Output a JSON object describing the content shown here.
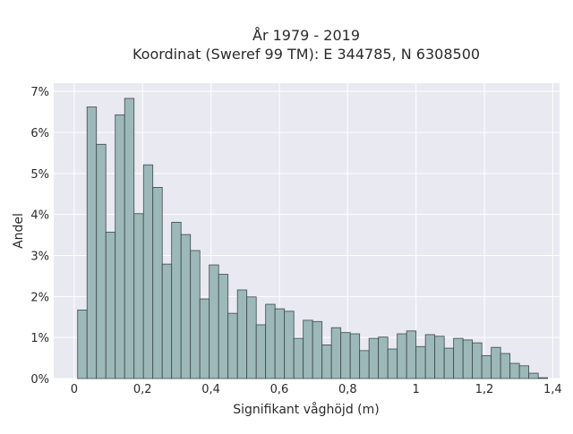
{
  "chart_data": {
    "type": "bar",
    "title_line1": "År 1979 - 2019",
    "title_line2": "Koordinat (Sweref 99 TM): E 344785, N 6308500",
    "xlabel": "Signifikant våghöjd (m)",
    "ylabel": "Andel",
    "xlim": [
      -0.06,
      1.42
    ],
    "ylim": [
      0,
      7.2
    ],
    "x_ticks": [
      0,
      0.2,
      0.4,
      0.6,
      0.8,
      1.0,
      1.2,
      1.4
    ],
    "x_tick_labels": [
      "0",
      "0,2",
      "0,4",
      "0,6",
      "0,8",
      "1",
      "1,2",
      "1,4"
    ],
    "y_ticks": [
      0,
      1,
      2,
      3,
      4,
      5,
      6,
      7
    ],
    "y_tick_labels": [
      "0%",
      "1%",
      "2%",
      "3%",
      "4%",
      "5%",
      "6%",
      "7%"
    ],
    "bin_width": 0.0275,
    "bin_start": 0.01,
    "values": [
      1.67,
      6.62,
      5.71,
      3.57,
      6.43,
      6.83,
      4.02,
      5.21,
      4.66,
      2.79,
      3.81,
      3.51,
      3.12,
      1.94,
      2.77,
      2.54,
      1.59,
      2.16,
      1.99,
      1.31,
      1.81,
      1.7,
      1.64,
      0.98,
      1.42,
      1.39,
      0.82,
      1.24,
      1.12,
      1.09,
      0.68,
      0.98,
      1.01,
      0.72,
      1.09,
      1.16,
      0.78,
      1.07,
      1.03,
      0.74,
      0.98,
      0.94,
      0.87,
      0.56,
      0.76,
      0.61,
      0.37,
      0.31,
      0.13,
      0.02
    ],
    "bar_color": "#9db8b8",
    "bar_edge_color": "#3a4a4a",
    "grid": true,
    "background": "#e9e9f1"
  }
}
